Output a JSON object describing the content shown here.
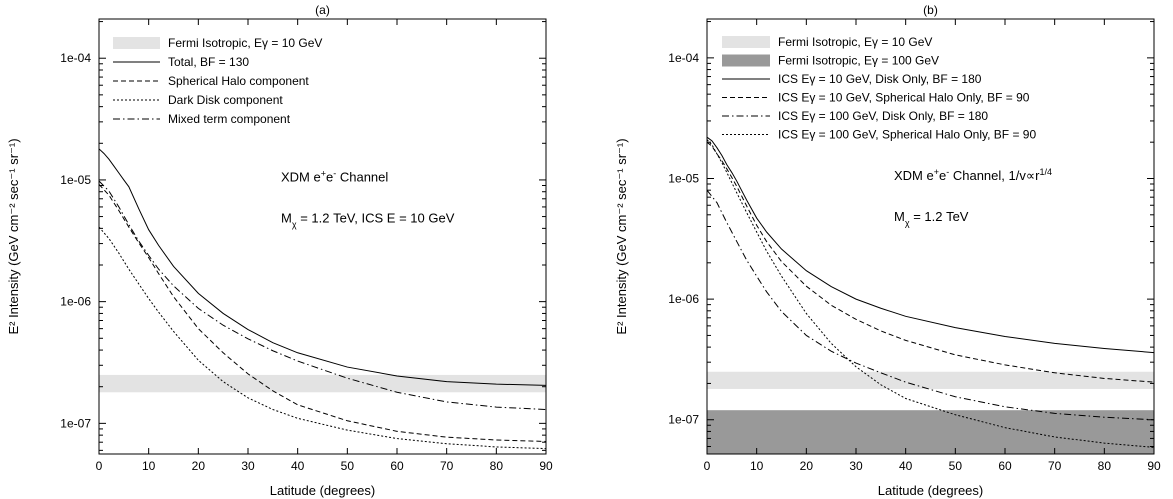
{
  "chart_data": [
    {
      "type": "line",
      "panel_label": "(a)",
      "xlabel": "Latitude (degrees)",
      "ylabel": "E² Intensity (GeV cm⁻² sec⁻¹ sr⁻¹)",
      "xlim": [
        0,
        90
      ],
      "ylim": [
        5.6e-08,
        0.00021
      ],
      "yscale": "log",
      "x_ticks": [
        0,
        10,
        20,
        30,
        40,
        50,
        60,
        70,
        80,
        90
      ],
      "y_ticks": [
        1e-07,
        1e-06,
        1e-05,
        0.0001
      ],
      "y_tick_labels": [
        "1e-07",
        "1e-06",
        "1e-05",
        "1e-04"
      ],
      "grid": false,
      "legend_position": "top-left",
      "bands": [
        {
          "name": "Fermi Isotropic, Eγ = 10 GeV",
          "y_low": 1.8e-07,
          "y_high": 2.5e-07,
          "color": "#e3e3e3"
        }
      ],
      "series": [
        {
          "name": "Total, BF = 130",
          "dash": "solid",
          "x": [
            0,
            1,
            2,
            3,
            4,
            5,
            6,
            8,
            10,
            12,
            15,
            20,
            25,
            30,
            35,
            40,
            50,
            60,
            70,
            80,
            90
          ],
          "y": [
            1.8e-05,
            1.65e-05,
            1.48e-05,
            1.3e-05,
            1.14e-05,
            1e-05,
            8.8e-06,
            5.8e-06,
            3.9e-06,
            2.9e-06,
            1.95e-06,
            1.17e-06,
            8e-07,
            5.9e-07,
            4.6e-07,
            3.8e-07,
            2.9e-07,
            2.45e-07,
            2.2e-07,
            2.1e-07,
            2.05e-07
          ]
        },
        {
          "name": "Spherical Halo component",
          "dash": "dashed",
          "x": [
            0,
            2,
            4,
            6,
            8,
            10,
            12,
            15,
            20,
            25,
            30,
            35,
            40,
            50,
            60,
            70,
            80,
            90
          ],
          "y": [
            9.2e-06,
            7.5e-06,
            5.6e-06,
            4.1e-06,
            3.05e-06,
            2.3e-06,
            1.7e-06,
            1.1e-06,
            6e-07,
            3.8e-07,
            2.55e-07,
            1.85e-07,
            1.42e-07,
            1.05e-07,
            8.6e-08,
            7.7e-08,
            7.3e-08,
            7.1e-08
          ]
        },
        {
          "name": "Dark Disk component",
          "dash": "dotted",
          "x": [
            0,
            2,
            4,
            6,
            8,
            10,
            12,
            15,
            20,
            25,
            30,
            35,
            40,
            50,
            60,
            70,
            80,
            90
          ],
          "y": [
            4.1e-06,
            3.3e-06,
            2.5e-06,
            1.85e-06,
            1.4e-06,
            1.06e-06,
            8.2e-07,
            5.7e-07,
            3.3e-07,
            2.2e-07,
            1.62e-07,
            1.3e-07,
            1.1e-07,
            8.8e-08,
            7.5e-08,
            6.8e-08,
            6.4e-08,
            6.2e-08
          ]
        },
        {
          "name": "Mixed term component",
          "dash": "dashdot",
          "x": [
            0,
            2,
            4,
            6,
            8,
            10,
            12,
            15,
            20,
            25,
            30,
            35,
            40,
            50,
            60,
            70,
            80,
            90
          ],
          "y": [
            9.8e-06,
            8.1e-06,
            6e-06,
            4.3e-06,
            3.15e-06,
            2.4e-06,
            1.85e-06,
            1.35e-06,
            8.8e-07,
            6.4e-07,
            4.95e-07,
            3.95e-07,
            3.25e-07,
            2.35e-07,
            1.8e-07,
            1.5e-07,
            1.36e-07,
            1.3e-07
          ]
        }
      ],
      "annotations": [
        {
          "parts": [
            {
              "t": "XDM e"
            },
            {
              "t": "+",
              "s": "sup"
            },
            {
              "t": "e"
            },
            {
              "t": "-",
              "s": "sup"
            },
            {
              "t": " Channel"
            }
          ],
          "x": 38,
          "y": 1.05e-05
        },
        {
          "parts": [
            {
              "t": "M"
            },
            {
              "t": "χ",
              "s": "sub"
            },
            {
              "t": " = 1.2 TeV, ICS E = 10 GeV"
            }
          ],
          "x": 38,
          "y": 4.8e-06
        }
      ]
    },
    {
      "type": "line",
      "panel_label": "(b)",
      "xlabel": "Latitude (degrees)",
      "ylabel": "E² Intensity (GeV cm⁻² sec⁻¹ sr⁻¹)",
      "xlim": [
        0,
        90
      ],
      "ylim": [
        5.2e-08,
        0.00021
      ],
      "yscale": "log",
      "x_ticks": [
        0,
        10,
        20,
        30,
        40,
        50,
        60,
        70,
        80,
        90
      ],
      "y_ticks": [
        1e-07,
        1e-06,
        1e-05,
        0.0001
      ],
      "y_tick_labels": [
        "1e-07",
        "1e-06",
        "1e-05",
        "1e-04"
      ],
      "grid": false,
      "legend_position": "top-left",
      "bands": [
        {
          "name": "Fermi Isotropic, Eγ = 10 GeV",
          "y_low": 1.8e-07,
          "y_high": 2.5e-07,
          "color": "#e3e3e3"
        },
        {
          "name": "Fermi Isotropic, Eγ = 100 GeV",
          "y_low": 5.2e-08,
          "y_high": 1.2e-07,
          "color": "#999999"
        }
      ],
      "series": [
        {
          "name": "ICS Eγ = 10 GeV, Disk Only, BF = 180",
          "dash": "solid",
          "x": [
            0,
            1,
            2,
            3,
            4,
            5,
            6,
            8,
            10,
            12,
            15,
            20,
            25,
            30,
            35,
            40,
            50,
            60,
            70,
            80,
            90
          ],
          "y": [
            2.2e-05,
            2.05e-05,
            1.8e-05,
            1.55e-05,
            1.3e-05,
            1.12e-05,
            9.5e-06,
            6.6e-06,
            4.7e-06,
            3.6e-06,
            2.6e-06,
            1.72e-06,
            1.27e-06,
            1e-06,
            8.4e-07,
            7.2e-07,
            5.8e-07,
            4.9e-07,
            4.3e-07,
            3.9e-07,
            3.6e-07
          ]
        },
        {
          "name": "ICS Eγ = 10 GeV, Spherical Halo Only, BF = 90",
          "dash": "dashed",
          "x": [
            0,
            1,
            2,
            3,
            4,
            5,
            6,
            8,
            10,
            12,
            15,
            20,
            25,
            30,
            35,
            40,
            50,
            60,
            70,
            80,
            90
          ],
          "y": [
            2e-05,
            1.85e-05,
            1.6e-05,
            1.4e-05,
            1.2e-05,
            1.02e-05,
            8.6e-06,
            5.9e-06,
            4.1e-06,
            3e-06,
            2.05e-06,
            1.28e-06,
            8.9e-07,
            6.8e-07,
            5.45e-07,
            4.55e-07,
            3.45e-07,
            2.85e-07,
            2.45e-07,
            2.2e-07,
            2.05e-07
          ]
        },
        {
          "name": "ICS Eγ = 100 GeV, Disk Only, BF = 180",
          "dash": "dashdot",
          "x": [
            0,
            2,
            4,
            6,
            8,
            10,
            12,
            15,
            20,
            25,
            30,
            35,
            40,
            50,
            60,
            70,
            80,
            90
          ],
          "y": [
            8e-06,
            6.3e-06,
            4.3e-06,
            3e-06,
            2.1e-06,
            1.55e-06,
            1.15e-06,
            7.9e-07,
            5e-07,
            3.7e-07,
            2.95e-07,
            2.45e-07,
            2.05e-07,
            1.55e-07,
            1.28e-07,
            1.13e-07,
            1.05e-07,
            1e-07
          ]
        },
        {
          "name": "ICS Eγ = 100 GeV, Spherical Halo Only, BF = 90",
          "dash": "dotted",
          "x": [
            0,
            1,
            2,
            3,
            4,
            6,
            8,
            10,
            12,
            15,
            20,
            25,
            30,
            35,
            40,
            50,
            60,
            70,
            80,
            90
          ],
          "y": [
            2.1e-05,
            1.9e-05,
            1.6e-05,
            1.35e-05,
            1.12e-05,
            7.6e-06,
            5.2e-06,
            3.6e-06,
            2.5e-06,
            1.55e-06,
            7.6e-07,
            4.3e-07,
            2.75e-07,
            1.95e-07,
            1.5e-07,
            1.1e-07,
            8.6e-08,
            7.2e-08,
            6.4e-08,
            5.9e-08
          ]
        }
      ],
      "annotations": [
        {
          "parts": [
            {
              "t": "XDM e"
            },
            {
              "t": "+",
              "s": "sup"
            },
            {
              "t": "e"
            },
            {
              "t": "-",
              "s": "sup"
            },
            {
              "t": " Channel,  1/v∝r"
            },
            {
              "t": "1/4",
              "s": "sup"
            }
          ],
          "x": 38,
          "y": 1.05e-05
        },
        {
          "parts": [
            {
              "t": "M"
            },
            {
              "t": "χ",
              "s": "sub"
            },
            {
              "t": " = 1.2 TeV"
            }
          ],
          "x": 38,
          "y": 4.8e-06
        }
      ]
    }
  ]
}
